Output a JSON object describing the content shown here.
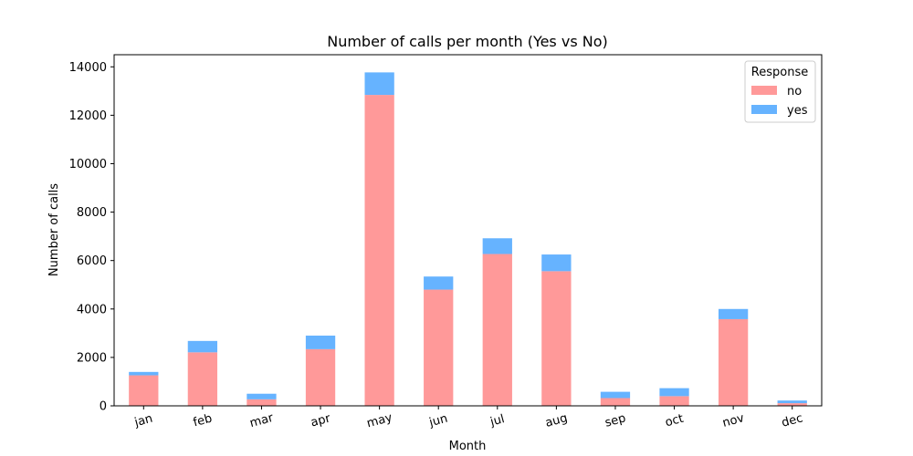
{
  "chart_data": {
    "type": "bar",
    "stacked": true,
    "title": "Number of calls per month (Yes vs No)",
    "xlabel": "Month",
    "ylabel": "Number of calls",
    "categories": [
      "jan",
      "feb",
      "mar",
      "apr",
      "may",
      "jun",
      "jul",
      "aug",
      "sep",
      "oct",
      "nov",
      "dec"
    ],
    "series": [
      {
        "name": "no",
        "color": "#ff9999",
        "values": [
          1260,
          2210,
          270,
          2340,
          12840,
          4800,
          6270,
          5560,
          320,
          400,
          3580,
          110
        ]
      },
      {
        "name": "yes",
        "color": "#66b3ff",
        "values": [
          140,
          470,
          230,
          560,
          930,
          540,
          650,
          690,
          260,
          330,
          420,
          110
        ]
      }
    ],
    "ylim": [
      0,
      14500
    ],
    "yticks": [
      0,
      2000,
      4000,
      6000,
      8000,
      10000,
      12000,
      14000
    ],
    "ytick_labels": [
      "0",
      "2000",
      "4000",
      "6000",
      "8000",
      "10000",
      "12000",
      "14000"
    ],
    "legend": {
      "title": "Response",
      "placement": "top-right"
    },
    "grid": false
  }
}
